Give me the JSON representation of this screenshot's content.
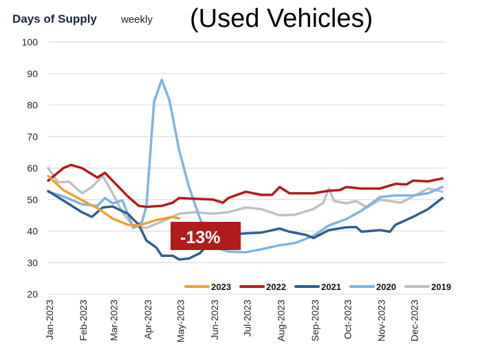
{
  "chart_data": {
    "type": "line",
    "title": "Days of Supply",
    "subtitle": "weekly",
    "heading": "(Used Vehicles)",
    "annotation": "-13%",
    "annotation_color": "#b01c1c",
    "ylim": [
      20,
      100
    ],
    "yticks": [
      20,
      30,
      40,
      50,
      60,
      70,
      80,
      90,
      100
    ],
    "xlim": [
      "2023-01-01",
      "2023-12-31"
    ],
    "xticks": [
      "Jan-2023",
      "Feb-2023",
      "Mar-2023",
      "Apr-2023",
      "May-2023",
      "Jun-2023",
      "Jul-2023",
      "Aug-2023",
      "Sep-2023",
      "Oct-2023",
      "Nov-2023",
      "Dec-2023"
    ],
    "grid": true,
    "legend_position": "bottom-right",
    "series": [
      {
        "name": "2023",
        "color": "#f0a030",
        "points": [
          [
            "2023-01-01",
            57.5
          ],
          [
            "2023-01-15",
            53
          ],
          [
            "2023-02-01",
            49.8
          ],
          [
            "2023-02-15",
            47.3
          ],
          [
            "2023-03-01",
            44
          ],
          [
            "2023-03-15",
            42
          ],
          [
            "2023-03-25",
            41.8
          ],
          [
            "2023-04-01",
            42.5
          ],
          [
            "2023-04-10",
            43.5
          ],
          [
            "2023-04-25",
            44.5
          ],
          [
            "2023-05-01",
            44
          ]
        ]
      },
      {
        "name": "2022",
        "color": "#b01c1c",
        "points": [
          [
            "2023-01-01",
            56
          ],
          [
            "2023-01-15",
            60
          ],
          [
            "2023-01-22",
            61
          ],
          [
            "2023-02-01",
            60
          ],
          [
            "2023-02-15",
            57
          ],
          [
            "2023-02-22",
            58.5
          ],
          [
            "2023-03-01",
            56
          ],
          [
            "2023-03-15",
            51
          ],
          [
            "2023-03-25",
            48
          ],
          [
            "2023-04-01",
            47.7
          ],
          [
            "2023-04-15",
            48
          ],
          [
            "2023-04-25",
            49
          ],
          [
            "2023-05-01",
            50.5
          ],
          [
            "2023-06-01",
            50
          ],
          [
            "2023-06-10",
            49
          ],
          [
            "2023-06-15",
            50.5
          ],
          [
            "2023-07-01",
            52.5
          ],
          [
            "2023-07-15",
            51.5
          ],
          [
            "2023-07-25",
            51.5
          ],
          [
            "2023-08-01",
            54
          ],
          [
            "2023-08-10",
            52
          ],
          [
            "2023-09-01",
            52
          ],
          [
            "2023-09-15",
            52.8
          ],
          [
            "2023-09-25",
            53
          ],
          [
            "2023-10-01",
            54
          ],
          [
            "2023-10-15",
            53.5
          ],
          [
            "2023-11-01",
            53.5
          ],
          [
            "2023-11-15",
            55
          ],
          [
            "2023-11-25",
            54.8
          ],
          [
            "2023-12-01",
            56
          ],
          [
            "2023-12-15",
            55.8
          ],
          [
            "2023-12-28",
            56.7
          ]
        ]
      },
      {
        "name": "2021",
        "color": "#2f5f8f",
        "points": [
          [
            "2023-01-01",
            52.7
          ],
          [
            "2023-01-15",
            49.7
          ],
          [
            "2023-02-01",
            46
          ],
          [
            "2023-02-10",
            44.5
          ],
          [
            "2023-02-20",
            47.5
          ],
          [
            "2023-03-01",
            47.8
          ],
          [
            "2023-03-15",
            45.5
          ],
          [
            "2023-03-25",
            42
          ],
          [
            "2023-04-01",
            37
          ],
          [
            "2023-04-10",
            34.8
          ],
          [
            "2023-04-15",
            32.2
          ],
          [
            "2023-04-25",
            32.2
          ],
          [
            "2023-05-01",
            31
          ],
          [
            "2023-05-10",
            31.3
          ],
          [
            "2023-05-20",
            33
          ],
          [
            "2023-06-01",
            37.5
          ],
          [
            "2023-06-15",
            38.8
          ],
          [
            "2023-07-01",
            39.3
          ],
          [
            "2023-07-15",
            39.5
          ],
          [
            "2023-08-01",
            40.8
          ],
          [
            "2023-08-10",
            39.8
          ],
          [
            "2023-08-25",
            38.8
          ],
          [
            "2023-09-01",
            37.8
          ],
          [
            "2023-09-15",
            40.3
          ],
          [
            "2023-10-01",
            41.2
          ],
          [
            "2023-10-10",
            41.3
          ],
          [
            "2023-10-15",
            39.8
          ],
          [
            "2023-11-01",
            40.3
          ],
          [
            "2023-11-10",
            39.8
          ],
          [
            "2023-11-15",
            42
          ],
          [
            "2023-12-01",
            44.5
          ],
          [
            "2023-12-15",
            47
          ],
          [
            "2023-12-28",
            50.5
          ]
        ]
      },
      {
        "name": "2020",
        "color": "#7fb4e0",
        "points": [
          [
            "2023-01-01",
            52.5
          ],
          [
            "2023-01-15",
            51
          ],
          [
            "2023-02-01",
            48.5
          ],
          [
            "2023-02-15",
            48
          ],
          [
            "2023-02-22",
            50.5
          ],
          [
            "2023-03-01",
            48.8
          ],
          [
            "2023-03-10",
            49.7
          ],
          [
            "2023-03-20",
            41
          ],
          [
            "2023-03-28",
            43
          ],
          [
            "2023-04-01",
            48
          ],
          [
            "2023-04-08",
            81
          ],
          [
            "2023-04-15",
            88
          ],
          [
            "2023-04-22",
            81.5
          ],
          [
            "2023-05-01",
            65.7
          ],
          [
            "2023-05-10",
            54
          ],
          [
            "2023-05-20",
            44
          ],
          [
            "2023-06-01",
            35
          ],
          [
            "2023-06-15",
            33.5
          ],
          [
            "2023-07-01",
            33.3
          ],
          [
            "2023-07-15",
            34.2
          ],
          [
            "2023-08-01",
            35.5
          ],
          [
            "2023-08-15",
            36.2
          ],
          [
            "2023-09-01",
            38.5
          ],
          [
            "2023-09-15",
            41.8
          ],
          [
            "2023-10-01",
            43.8
          ],
          [
            "2023-10-15",
            46.5
          ],
          [
            "2023-11-01",
            50.8
          ],
          [
            "2023-11-15",
            51.3
          ],
          [
            "2023-12-01",
            51.3
          ],
          [
            "2023-12-15",
            52
          ],
          [
            "2023-12-28",
            54
          ]
        ]
      },
      {
        "name": "2019",
        "color": "#c0c0c0",
        "points": [
          [
            "2023-01-01",
            60
          ],
          [
            "2023-01-10",
            55.5
          ],
          [
            "2023-01-20",
            55.7
          ],
          [
            "2023-02-01",
            52
          ],
          [
            "2023-02-10",
            54
          ],
          [
            "2023-02-20",
            57.5
          ],
          [
            "2023-03-01",
            52
          ],
          [
            "2023-03-10",
            46
          ],
          [
            "2023-03-20",
            41.5
          ],
          [
            "2023-04-01",
            41
          ],
          [
            "2023-04-15",
            43
          ],
          [
            "2023-05-01",
            45.5
          ],
          [
            "2023-05-15",
            46
          ],
          [
            "2023-06-01",
            45.5
          ],
          [
            "2023-06-15",
            46
          ],
          [
            "2023-07-01",
            47.5
          ],
          [
            "2023-07-15",
            47
          ],
          [
            "2023-08-01",
            45
          ],
          [
            "2023-08-15",
            45.2
          ],
          [
            "2023-09-01",
            47
          ],
          [
            "2023-09-10",
            49
          ],
          [
            "2023-09-15",
            53.5
          ],
          [
            "2023-09-20",
            49.5
          ],
          [
            "2023-10-01",
            48.8
          ],
          [
            "2023-10-10",
            49.5
          ],
          [
            "2023-10-20",
            47.5
          ],
          [
            "2023-11-01",
            50
          ],
          [
            "2023-11-20",
            49
          ],
          [
            "2023-12-01",
            51
          ],
          [
            "2023-12-15",
            53.5
          ],
          [
            "2023-12-28",
            52.5
          ]
        ]
      }
    ]
  }
}
